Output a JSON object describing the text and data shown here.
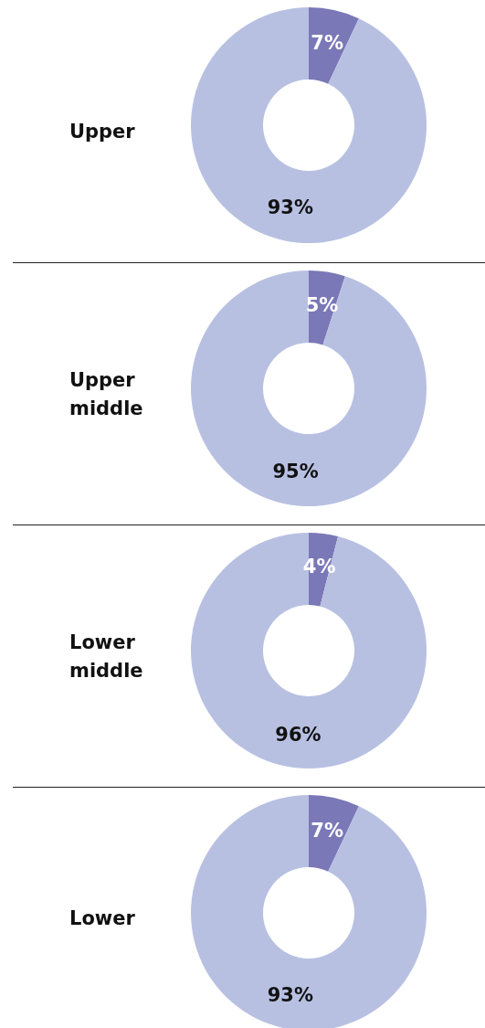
{
  "chart_data": [
    {
      "type": "donut",
      "title": "Upper",
      "categories": [
        null,
        null
      ],
      "values": [
        7,
        93
      ],
      "colors": [
        "#7b78b8",
        "#b8c0e2"
      ],
      "value_labels": [
        "7%",
        "93%"
      ]
    },
    {
      "type": "donut",
      "title": "Upper middle",
      "categories": [
        null,
        null
      ],
      "values": [
        5,
        95
      ],
      "colors": [
        "#7b78b8",
        "#b8c0e2"
      ],
      "value_labels": [
        "5%",
        "95%"
      ]
    },
    {
      "type": "donut",
      "title": "Lower middle",
      "categories": [
        null,
        null
      ],
      "values": [
        4,
        96
      ],
      "colors": [
        "#7b78b8",
        "#b8c0e2"
      ],
      "value_labels": [
        "4%",
        "96%"
      ]
    },
    {
      "type": "donut",
      "title": "Lower",
      "categories": [
        null,
        null
      ],
      "values": [
        7,
        93
      ],
      "colors": [
        "#7b78b8",
        "#b8c0e2"
      ],
      "value_labels": [
        "7%",
        "93%"
      ]
    }
  ]
}
